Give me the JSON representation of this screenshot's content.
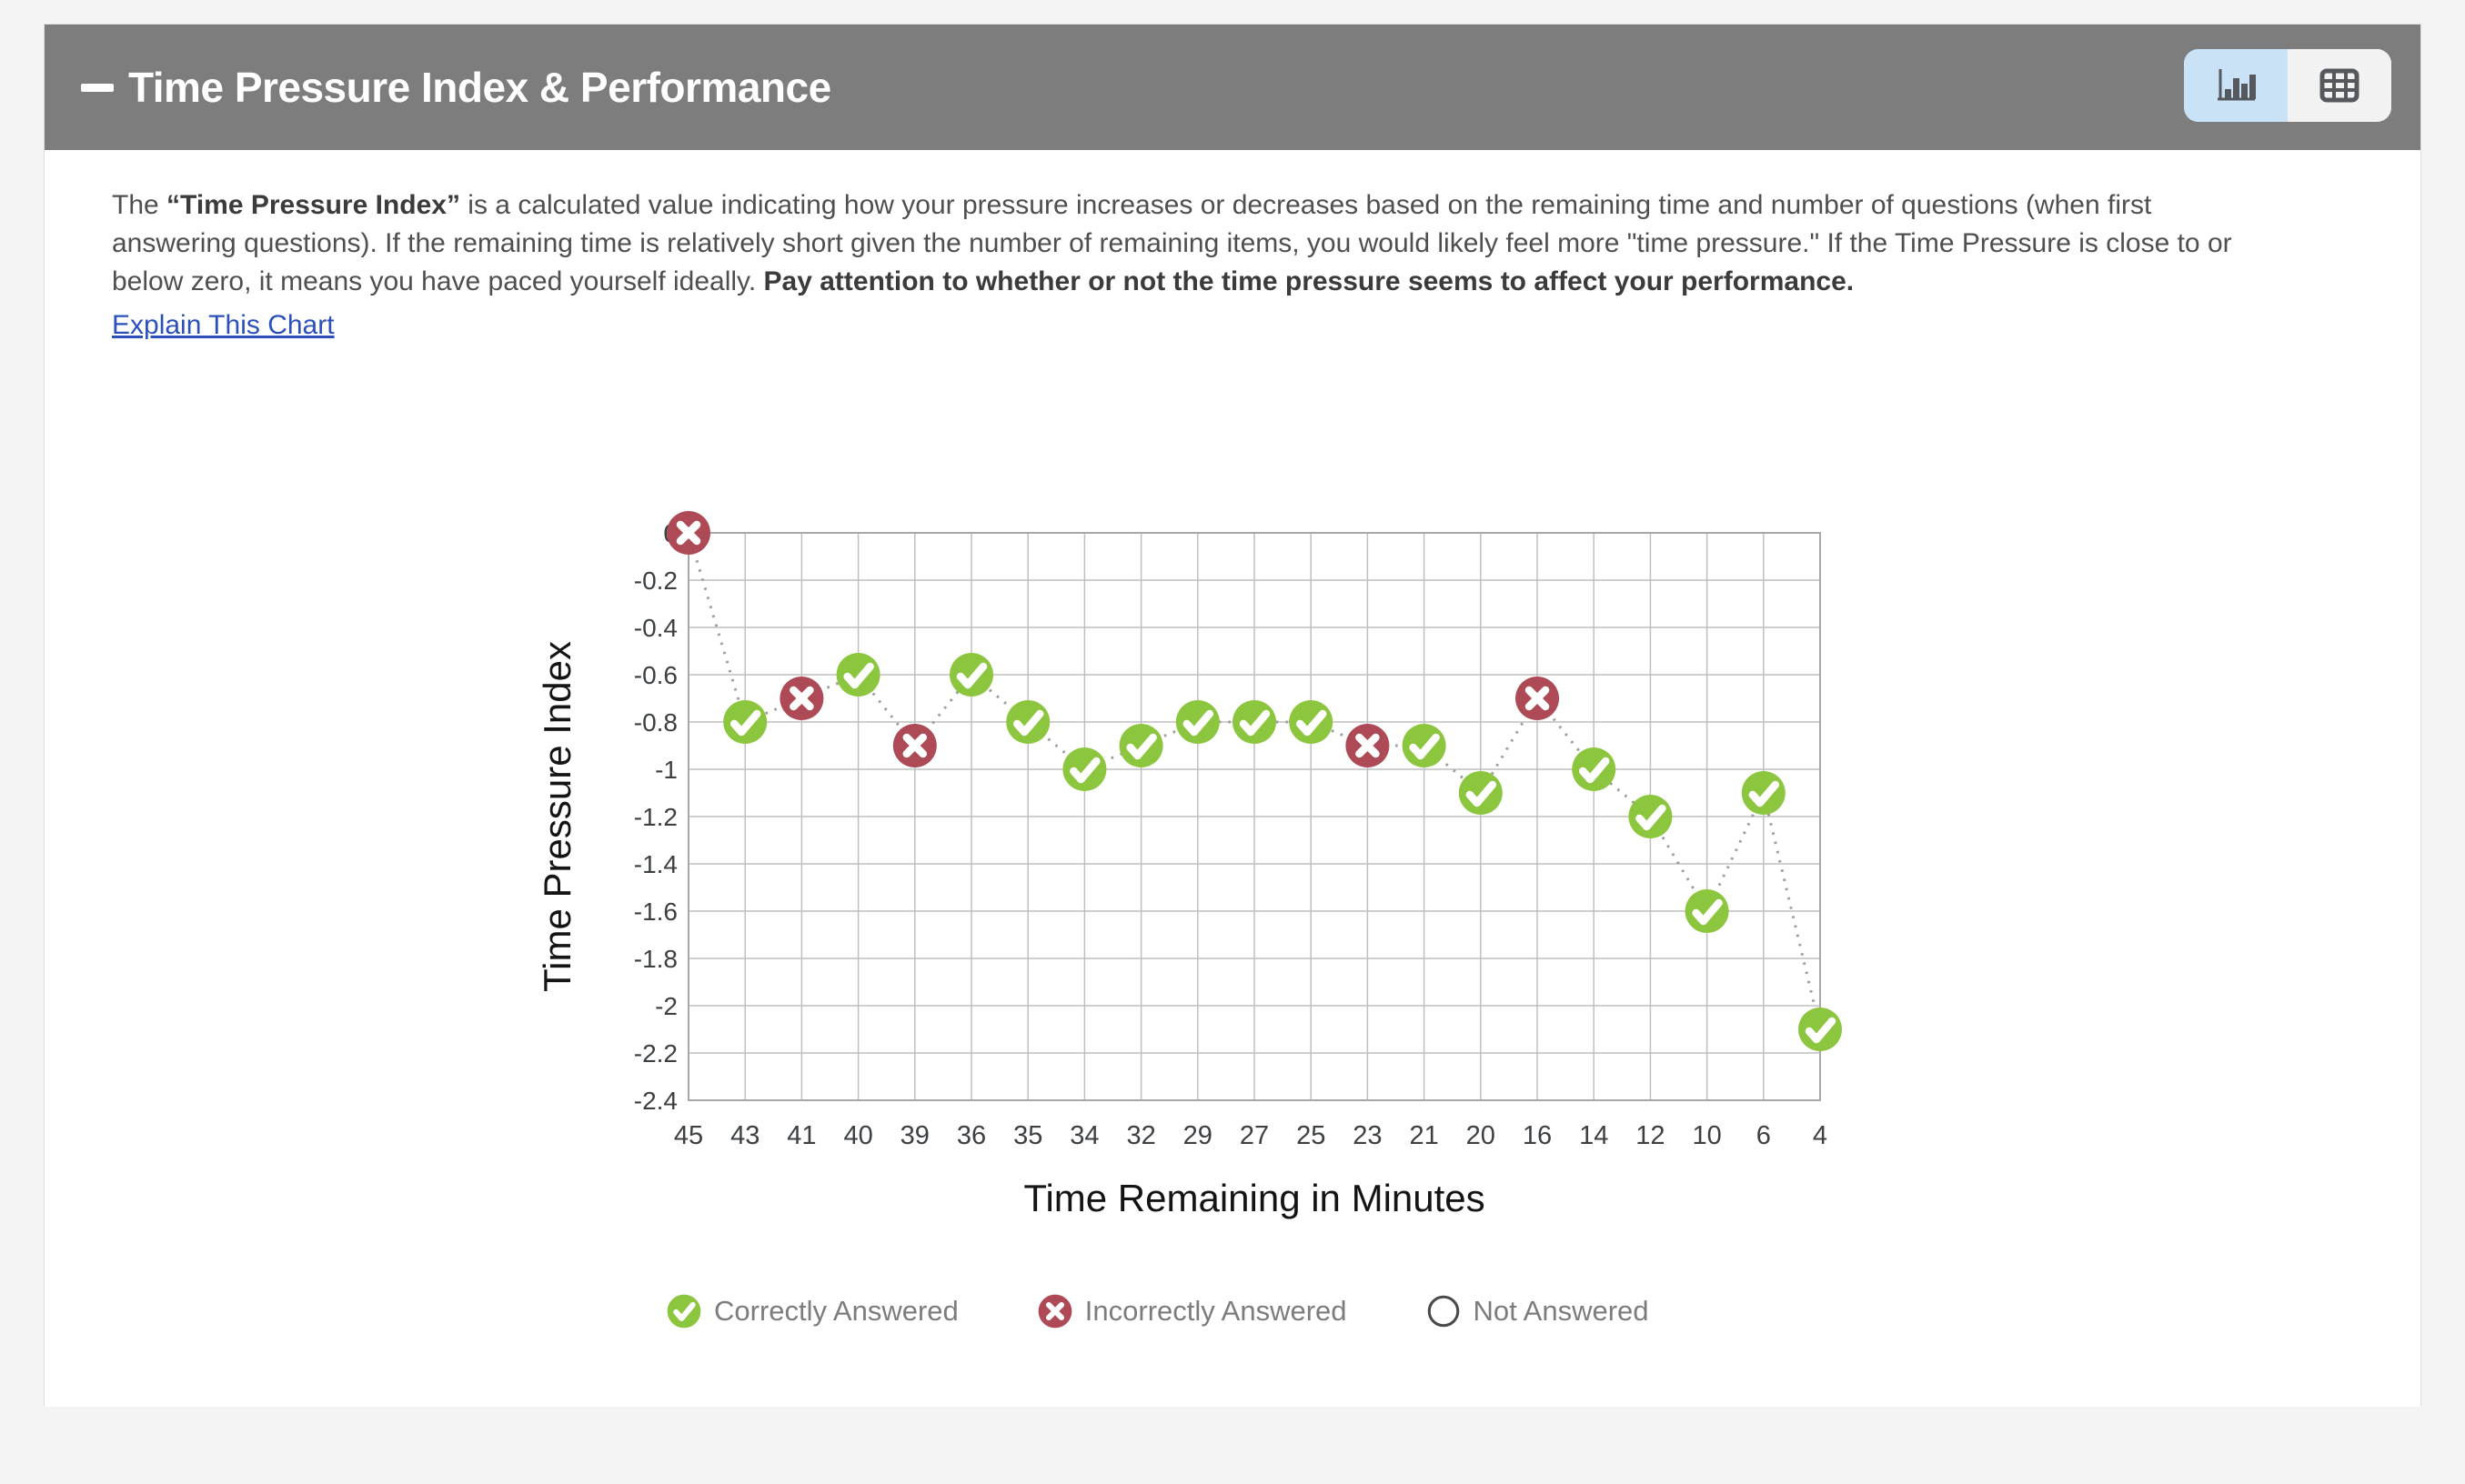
{
  "header": {
    "title": "Time Pressure Index & Performance"
  },
  "view_toggle": {
    "active_view": "chart",
    "buttons": [
      {
        "id": "chart",
        "icon": "bar-chart-icon",
        "selected": true
      },
      {
        "id": "table",
        "icon": "table-icon",
        "selected": false
      }
    ]
  },
  "description": {
    "prefix": "The ",
    "bold_term": "“Time Pressure Index”",
    "body": " is a calculated value indicating how your pressure increases or decreases based on the remaining time and number of questions (when first answering questions). If the remaining time is relatively short given the number of remaining items, you would likely feel more \"time pressure.\" If the Time Pressure is close to or below zero, it means you have paced yourself ideally. ",
    "bold_callout": "Pay attention to whether or not the time pressure seems to affect your performance.",
    "link_label": "Explain This Chart"
  },
  "chart_data": {
    "type": "scatter",
    "xlabel": "Time Remaining in Minutes",
    "ylabel": "Time Pressure Index",
    "x_categories": [
      45,
      43,
      41,
      40,
      39,
      36,
      35,
      34,
      32,
      29,
      27,
      25,
      23,
      21,
      20,
      16,
      14,
      12,
      10,
      6,
      4
    ],
    "y_tick_labels": [
      "0",
      "-0.2",
      "-0.4",
      "-0.6",
      "-0.8",
      "-1",
      "-1.2",
      "-1.4",
      "-1.6",
      "-1.8",
      "-2",
      "-2.2",
      "-2.4"
    ],
    "ylim": [
      -2.4,
      0
    ],
    "grid": true,
    "line_style": "dotted",
    "points": [
      {
        "x": 45,
        "y": 0,
        "status": "incorrect"
      },
      {
        "x": 43,
        "y": -0.8,
        "status": "correct"
      },
      {
        "x": 41,
        "y": -0.7,
        "status": "incorrect"
      },
      {
        "x": 40,
        "y": -0.6,
        "status": "correct"
      },
      {
        "x": 39,
        "y": -0.9,
        "status": "incorrect"
      },
      {
        "x": 36,
        "y": -0.6,
        "status": "correct"
      },
      {
        "x": 35,
        "y": -0.8,
        "status": "correct"
      },
      {
        "x": 34,
        "y": -1.0,
        "status": "correct"
      },
      {
        "x": 32,
        "y": -0.9,
        "status": "correct"
      },
      {
        "x": 29,
        "y": -0.8,
        "status": "correct"
      },
      {
        "x": 27,
        "y": -0.8,
        "status": "correct"
      },
      {
        "x": 25,
        "y": -0.8,
        "status": "correct"
      },
      {
        "x": 23,
        "y": -0.9,
        "status": "incorrect"
      },
      {
        "x": 21,
        "y": -0.9,
        "status": "correct"
      },
      {
        "x": 20,
        "y": -1.1,
        "status": "correct"
      },
      {
        "x": 16,
        "y": -0.7,
        "status": "incorrect"
      },
      {
        "x": 14,
        "y": -1.0,
        "status": "correct"
      },
      {
        "x": 12,
        "y": -1.2,
        "status": "correct"
      },
      {
        "x": 10,
        "y": -1.6,
        "status": "correct"
      },
      {
        "x": 6,
        "y": -1.1,
        "status": "correct"
      },
      {
        "x": 4,
        "y": -2.1,
        "status": "correct"
      }
    ]
  },
  "legend": {
    "items": [
      {
        "label": "Correctly Answered",
        "status": "correct"
      },
      {
        "label": "Incorrectly Answered",
        "status": "incorrect"
      },
      {
        "label": "Not Answered",
        "status": "not_answered"
      }
    ]
  },
  "colors": {
    "correct": "#8cc63f",
    "incorrect": "#ae4a55",
    "not_answered_border": "#4a4a4a",
    "header_bg": "#7d7d7d",
    "toggle_active_bg": "#c9e2f5",
    "link": "#2b50bd",
    "grid": "#bfbfbf",
    "axis_border": "#a8a8a8",
    "connector": "#9d9d9d",
    "tick_text": "#3c4043",
    "axis_title_text": "#141414",
    "legend_text": "#7c7c7c"
  }
}
